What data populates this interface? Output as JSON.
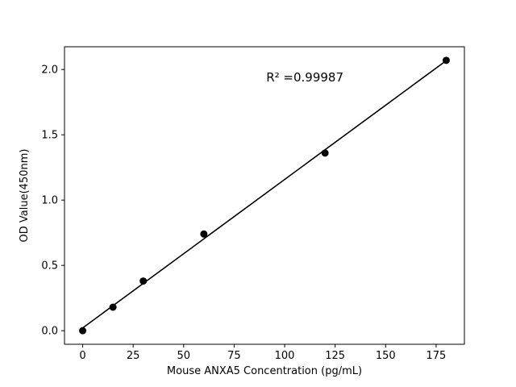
{
  "chart_data": {
    "type": "scatter",
    "x": [
      0,
      15,
      30,
      60,
      120,
      180
    ],
    "y": [
      0.0,
      0.18,
      0.38,
      0.74,
      1.36,
      2.07
    ],
    "fit": {
      "type": "linear"
    },
    "annotation": {
      "text": "R² =0.99987",
      "x": 110,
      "y": 1.91
    },
    "title": "",
    "xlabel": "Mouse ANXA5 Concentration (pg/mL)",
    "ylabel": "OD Value(450nm)",
    "xticks": [
      0,
      25,
      50,
      75,
      100,
      125,
      150,
      175
    ],
    "yticks": [
      0.0,
      0.5,
      1.0,
      1.5,
      2.0
    ],
    "xlim": [
      -9,
      189
    ],
    "ylim": [
      -0.104,
      2.174
    ],
    "grid": false,
    "legend": "none",
    "marker_color": "#000000",
    "line_color": "#000000",
    "background": "#ffffff"
  }
}
